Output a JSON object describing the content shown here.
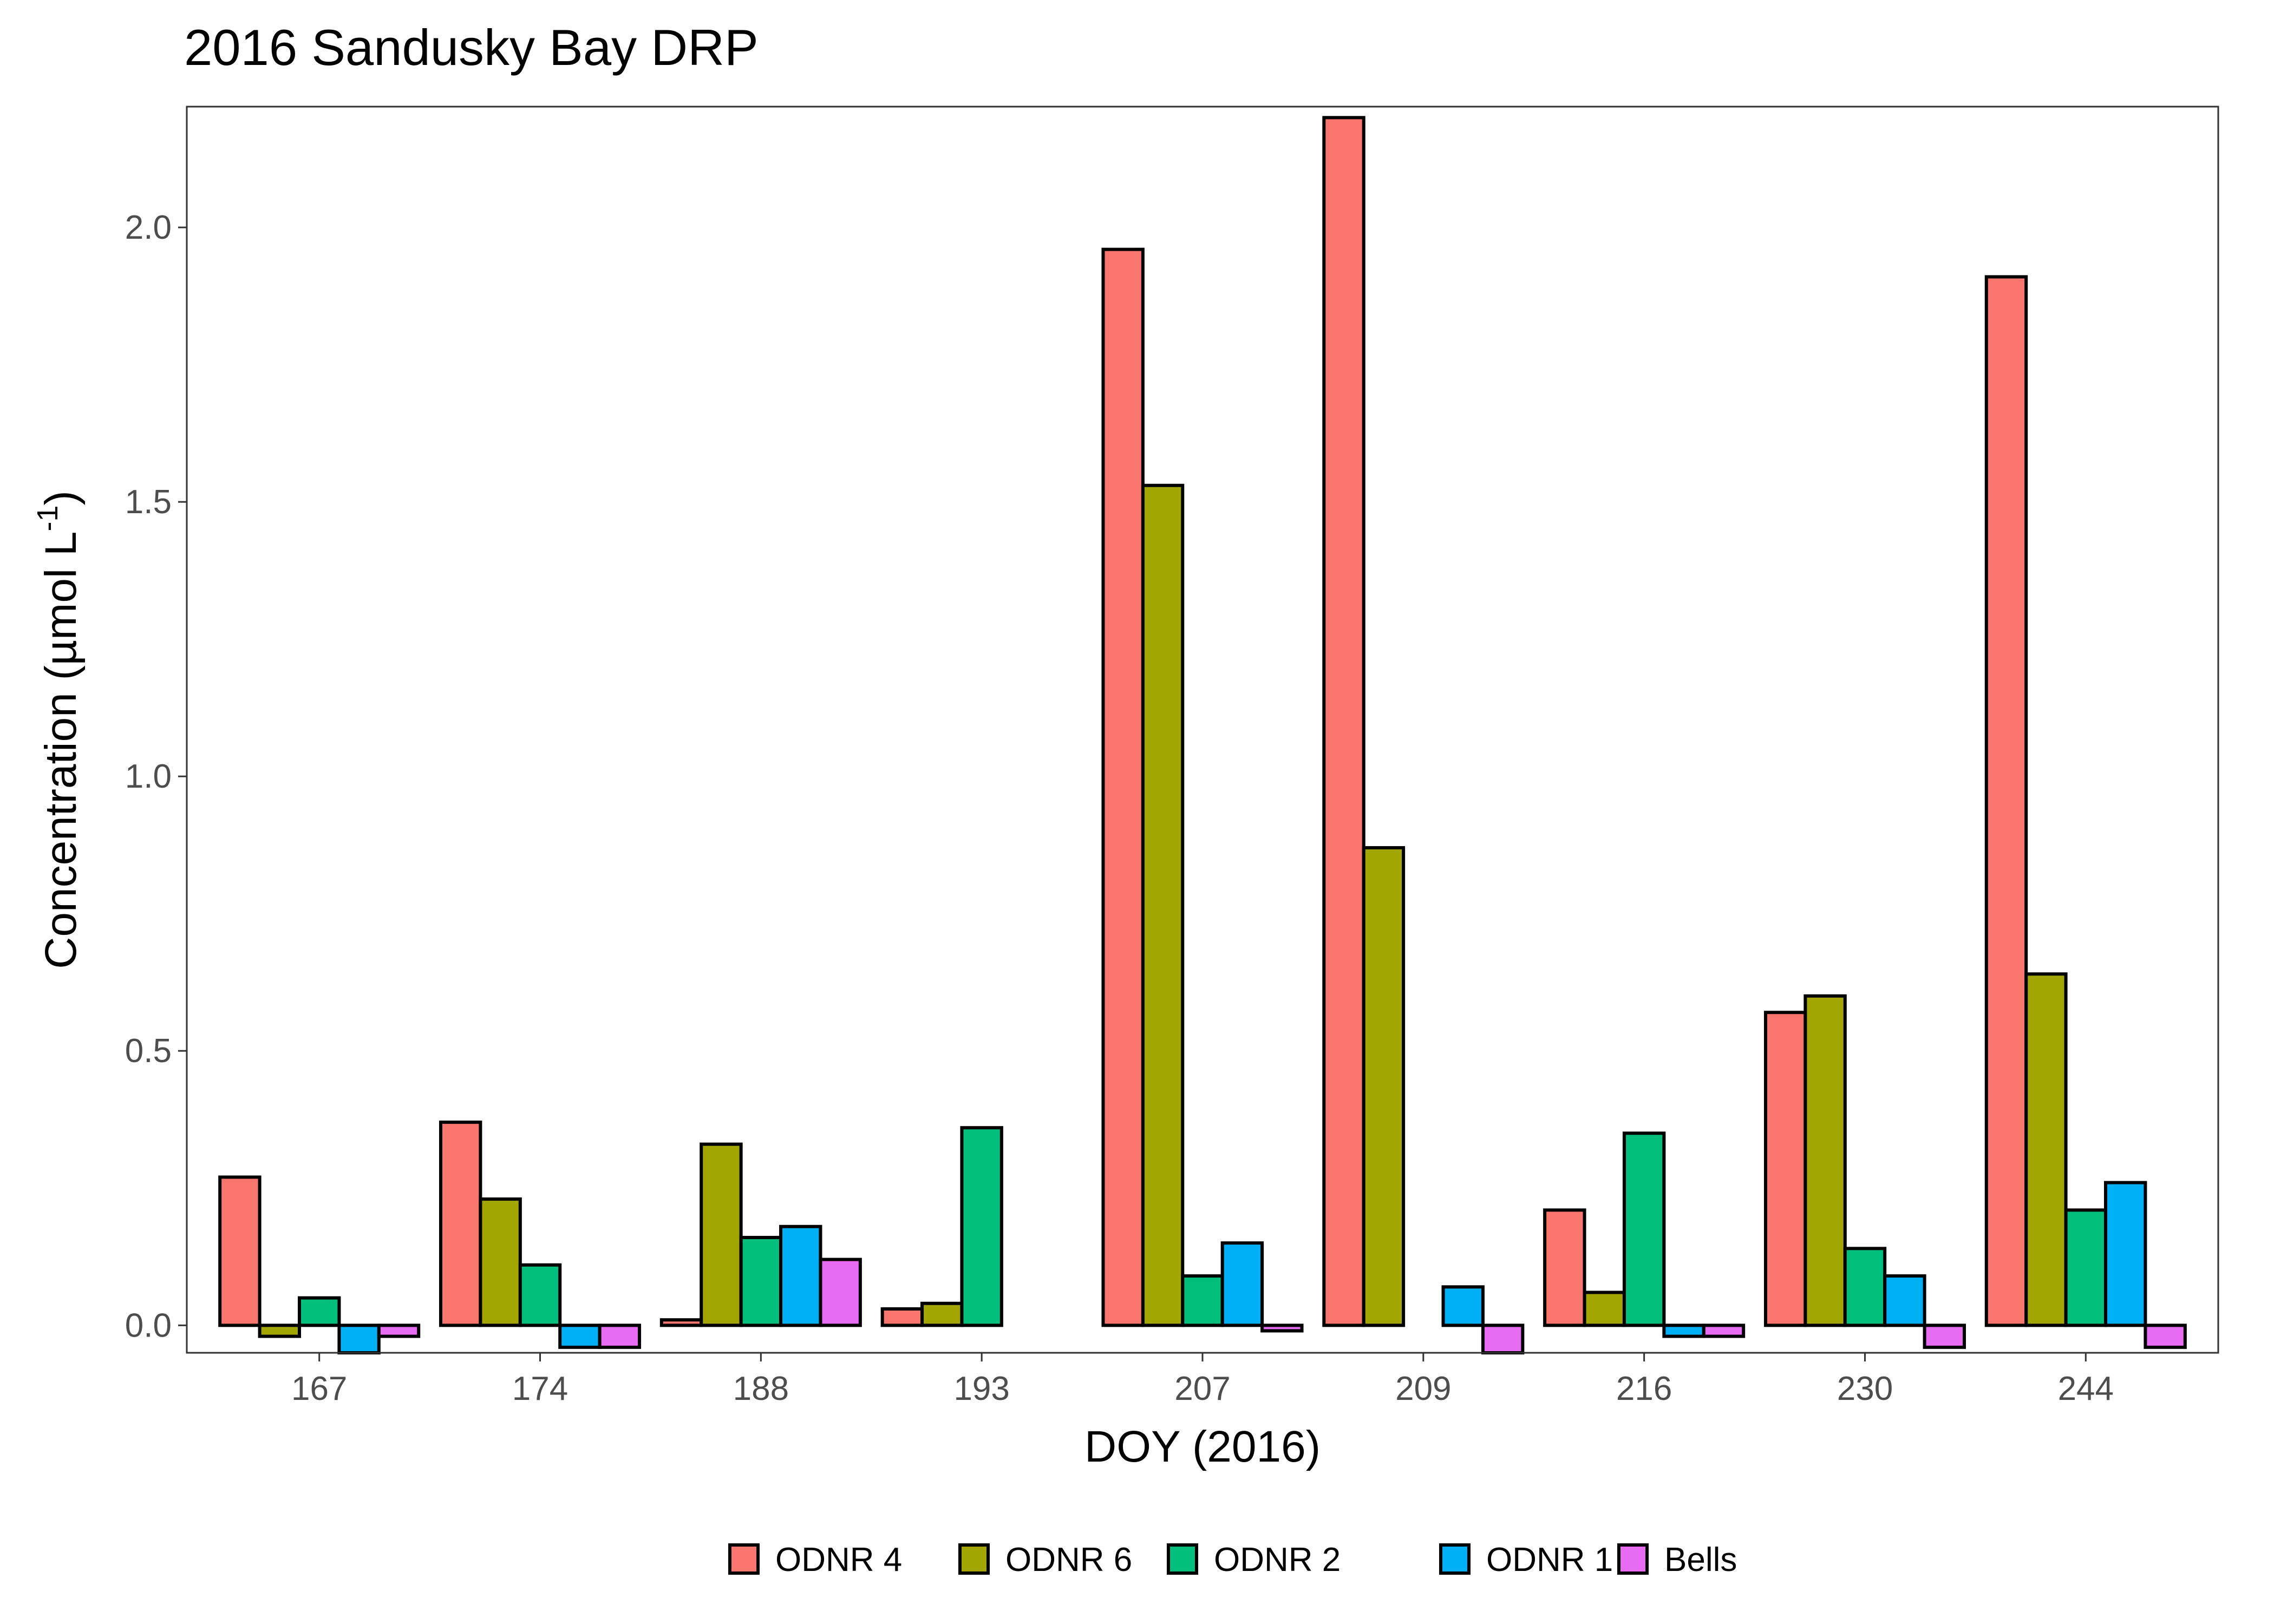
{
  "chart_data": {
    "type": "bar",
    "title": "2016 Sandusky Bay DRP",
    "xlabel": "DOY (2016)",
    "ylabel": "Concentration (µmol L",
    "ylabel_superscript": "-1",
    "ylabel_close": ")",
    "categories": [
      "167",
      "174",
      "188",
      "193",
      "207",
      "209",
      "216",
      "230",
      "244"
    ],
    "yticks": [
      "0.0",
      "0.5",
      "1.0",
      "1.5",
      "2.0"
    ],
    "ylim": [
      -0.05,
      2.22
    ],
    "grid": false,
    "legend_position": "bottom",
    "series": [
      {
        "name": "ODNR 4",
        "color": "#F8766D",
        "values": [
          0.27,
          0.37,
          0.01,
          0.03,
          1.96,
          2.2,
          0.21,
          0.57,
          1.91
        ]
      },
      {
        "name": "ODNR 6",
        "color": "#A3A500",
        "values": [
          -0.02,
          0.23,
          0.33,
          0.04,
          1.53,
          0.87,
          0.06,
          0.6,
          0.64
        ]
      },
      {
        "name": "ODNR 2",
        "color": "#00BF7D",
        "values": [
          0.05,
          0.11,
          0.16,
          0.36,
          0.09,
          0.0,
          0.35,
          0.14,
          0.21
        ]
      },
      {
        "name": "ODNR 1",
        "color": "#00B0F6",
        "values": [
          -0.05,
          -0.04,
          0.18,
          0.0,
          0.15,
          0.07,
          -0.02,
          0.09,
          0.26
        ]
      },
      {
        "name": "Bells",
        "color": "#E76BF3",
        "values": [
          -0.02,
          -0.04,
          0.12,
          0.0,
          -0.01,
          -0.05,
          -0.02,
          -0.04,
          -0.04
        ]
      }
    ]
  }
}
